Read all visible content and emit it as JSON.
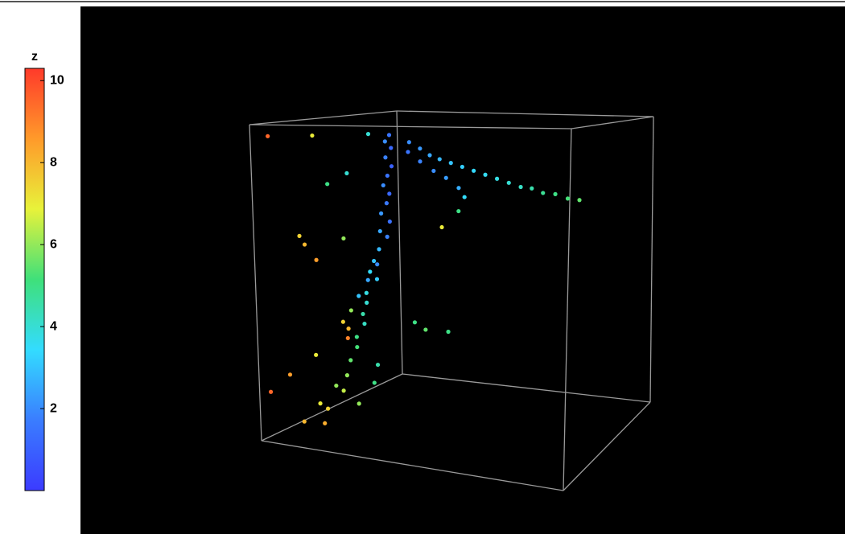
{
  "chart_data": {
    "type": "scatter3d",
    "colorbar_title": "z",
    "clim": [
      0,
      10.3
    ],
    "cticks": [
      2,
      4,
      6,
      8,
      10
    ],
    "colormap": [
      "#3b3bff",
      "#3a7dff",
      "#33dcff",
      "#3fe07a",
      "#e8f23a",
      "#ff9a2a",
      "#ff3a2a"
    ],
    "x": [
      0.05,
      0.06,
      0.04,
      0.05,
      0.03,
      0.04,
      0.05,
      0.03,
      0.04,
      0.05,
      0.04,
      0.06,
      0.05,
      0.07,
      0.06,
      0.07,
      0.08,
      0.07,
      0.08,
      0.09,
      0.08,
      0.09,
      0.1,
      0.09,
      0.1,
      0.11,
      0.1,
      0.12,
      0.15,
      0.2,
      0.25,
      0.3,
      0.35,
      0.4,
      0.45,
      0.5,
      0.55,
      0.6,
      0.65,
      0.7,
      0.75,
      0.8,
      0.85,
      0.9,
      0.12,
      0.18,
      0.24,
      0.3,
      0.36,
      0.42,
      0.46,
      0.48,
      0.02,
      0.0,
      0.02,
      0.06,
      0.1,
      0.12,
      0.02,
      0.01,
      0.0,
      0.12,
      0.16,
      0.2,
      0.24,
      0.3,
      0.36,
      0.42,
      0.04,
      0.02,
      0.0,
      0.06,
      0.05,
      0.04,
      0.14,
      0.15,
      0.14,
      0.02,
      0.05,
      0.1
    ],
    "y": [
      0.08,
      0.1,
      0.13,
      0.16,
      0.2,
      0.23,
      0.26,
      0.3,
      0.33,
      0.36,
      0.4,
      0.42,
      0.45,
      0.48,
      0.52,
      0.55,
      0.58,
      0.62,
      0.65,
      0.68,
      0.72,
      0.75,
      0.78,
      0.82,
      0.86,
      0.9,
      0.94,
      0.97,
      0.1,
      0.12,
      0.14,
      0.15,
      0.16,
      0.17,
      0.18,
      0.19,
      0.2,
      0.21,
      0.22,
      0.22,
      0.23,
      0.23,
      0.24,
      0.24,
      0.14,
      0.17,
      0.2,
      0.22,
      0.25,
      0.27,
      0.3,
      0.33,
      0.2,
      0.23,
      0.38,
      0.4,
      0.4,
      0.44,
      0.55,
      0.6,
      0.65,
      0.64,
      0.65,
      0.66,
      0.67,
      0.68,
      0.69,
      0.7,
      0.78,
      0.82,
      0.86,
      0.9,
      0.94,
      0.98,
      0.85,
      0.9,
      0.95,
      0.04,
      0.05,
      0.06
    ],
    "z": [
      1.5,
      2,
      1.2,
      1.8,
      1,
      1.5,
      2,
      1.2,
      1.6,
      2.2,
      1.4,
      2.5,
      1.8,
      2.8,
      3,
      3.5,
      3.2,
      3.8,
      4,
      4.5,
      4.2,
      5,
      5.2,
      5.5,
      6,
      6.5,
      7.5,
      8.2,
      2,
      2.2,
      2.5,
      2.8,
      3,
      3.2,
      3.4,
      3.6,
      3.8,
      4,
      4.2,
      4.5,
      4.8,
      5,
      5.2,
      5.5,
      1.5,
      1.8,
      2,
      2.3,
      2.6,
      3.5,
      5,
      7,
      4,
      5,
      7.5,
      8,
      6,
      8.5,
      2,
      2.5,
      3,
      6,
      7.5,
      8,
      9,
      5,
      5.5,
      5,
      7,
      8.5,
      9.5,
      6,
      7,
      8,
      4.5,
      5,
      6,
      9.5,
      7,
      4
    ]
  }
}
